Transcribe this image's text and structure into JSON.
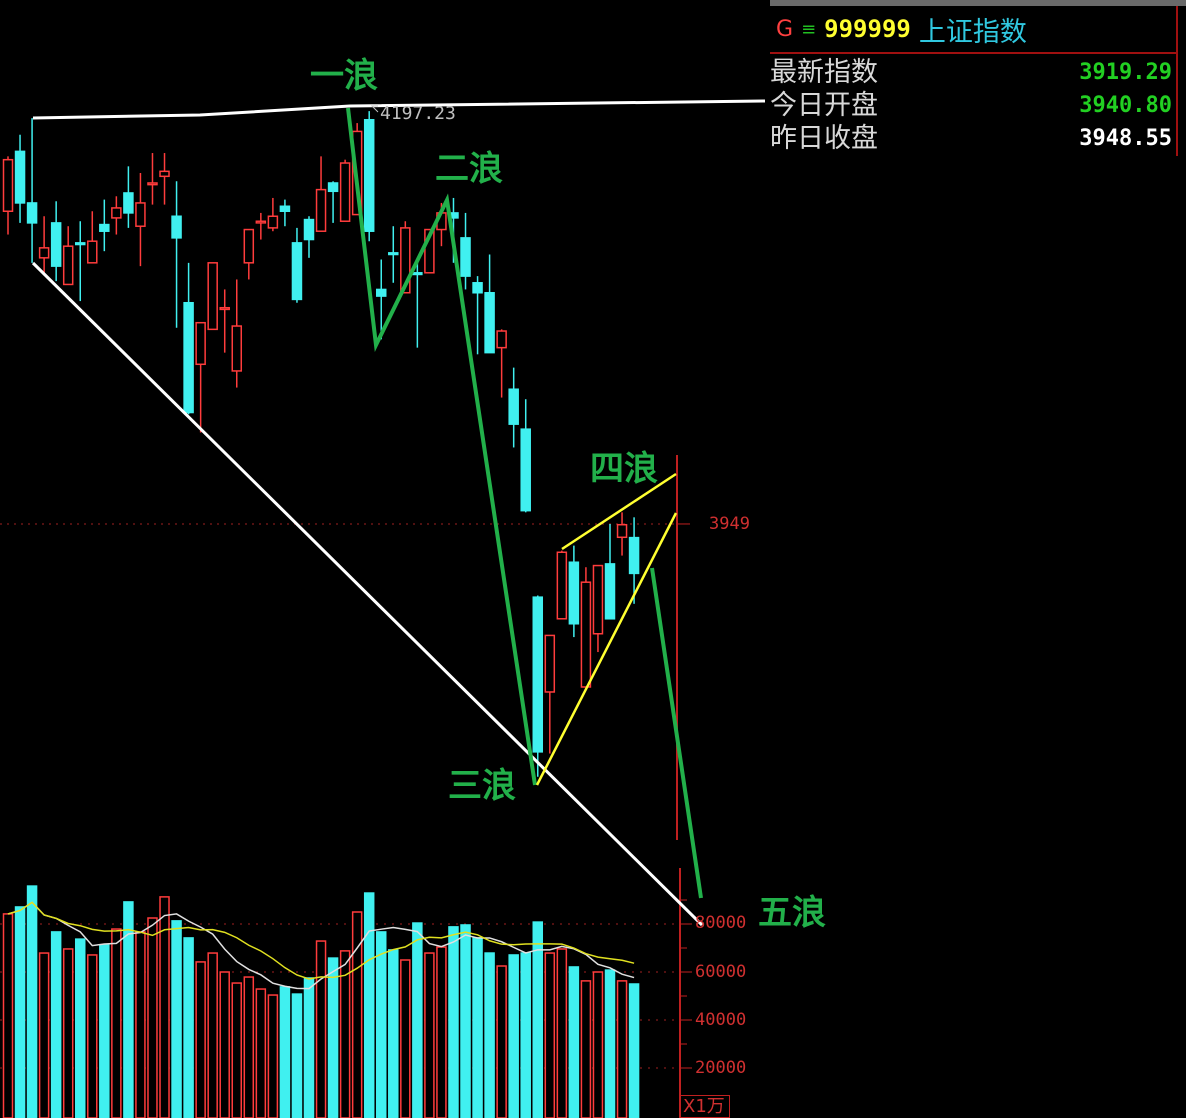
{
  "header": {
    "g_label": "G",
    "menu_icon": "menu-lines-icon",
    "code": "999999",
    "name": "上证指数"
  },
  "quote": [
    {
      "label": "最新指数",
      "value": "3919.29",
      "color": "#22d022"
    },
    {
      "label": "今日开盘",
      "value": "3940.80",
      "color": "#22d022"
    },
    {
      "label": "昨日收盘",
      "value": "3948.55",
      "color": "#ffffff"
    }
  ],
  "annotations": {
    "wave1": "一浪",
    "wave2": "二浪",
    "wave3": "三浪",
    "wave4": "四浪",
    "wave5": "五浪"
  },
  "colors": {
    "up": "#ff3c3c",
    "down": "#40f0f0",
    "trendline": "#ffffff",
    "wave": "#22b04a",
    "wedge": "#ffff30",
    "axis": "#c02020",
    "ma5": "#e0e0e0",
    "ma10": "#e0e020"
  },
  "chart_data": [
    {
      "type": "candlestick",
      "price_label": "3949",
      "high_label": "4197.23",
      "ylim": [
        3753,
        4264
      ],
      "reference_price": 3949,
      "ohlc": [
        [
          4137,
          4170,
          4123,
          4168
        ],
        [
          4173,
          4183,
          4130,
          4142
        ],
        [
          4142,
          4193,
          4106,
          4130
        ],
        [
          4109,
          4134,
          4100,
          4115
        ],
        [
          4130,
          4143,
          4095,
          4104
        ],
        [
          4093,
          4128,
          4093,
          4116
        ],
        [
          4118,
          4131,
          4083,
          4117
        ],
        [
          4106,
          4137,
          4106,
          4119
        ],
        [
          4129,
          4144,
          4113,
          4125
        ],
        [
          4133,
          4146,
          4123,
          4139
        ],
        [
          4148,
          4164,
          4127,
          4136
        ],
        [
          4128,
          4160,
          4104,
          4142
        ],
        [
          4153,
          4172,
          4141,
          4154
        ],
        [
          4158,
          4172,
          4141,
          4161
        ],
        [
          4134,
          4155,
          4067,
          4121
        ],
        [
          4082,
          4106,
          4015,
          4016
        ],
        [
          4045,
          4070,
          4004,
          4070
        ],
        [
          4066,
          4106,
          4066,
          4106
        ],
        [
          4078,
          4090,
          4052,
          4079
        ],
        [
          4041,
          4096,
          4031,
          4068
        ],
        [
          4106,
          4126,
          4096,
          4126
        ],
        [
          4130,
          4136,
          4120,
          4131
        ],
        [
          4127,
          4145,
          4125,
          4134
        ],
        [
          4140,
          4144,
          4128,
          4137
        ],
        [
          4118,
          4127,
          4082,
          4084
        ],
        [
          4132,
          4134,
          4109,
          4120
        ],
        [
          4125,
          4170,
          4125,
          4150
        ],
        [
          4154,
          4155,
          4130,
          4149
        ],
        [
          4131,
          4168,
          4131,
          4166
        ],
        [
          4135,
          4190,
          4135,
          4185
        ],
        [
          4192,
          4197.23,
          4119,
          4125
        ],
        [
          4090,
          4108,
          4060,
          4086
        ],
        [
          4112,
          4128,
          4094,
          4111
        ],
        [
          4088,
          4131,
          4088,
          4127
        ],
        [
          4100,
          4106,
          4055,
          4099
        ],
        [
          4100,
          4126,
          4100,
          4126
        ],
        [
          4126,
          4142,
          4116,
          4136
        ],
        [
          4136,
          4145,
          4106,
          4133
        ],
        [
          4121,
          4136,
          4090,
          4098
        ],
        [
          4094,
          4098,
          4051,
          4088
        ],
        [
          4088,
          4111,
          4052,
          4052
        ],
        [
          4055,
          4066,
          4025,
          4065
        ],
        [
          4030,
          4043,
          3995,
          4009
        ],
        [
          4006,
          4024,
          3956,
          3957
        ],
        [
          3905,
          3906,
          3797,
          3812
        ],
        [
          3848,
          3882,
          3811,
          3882
        ],
        [
          3892,
          3933,
          3892,
          3932
        ],
        [
          3926,
          3936,
          3881,
          3889
        ],
        [
          3851,
          3923,
          3851,
          3914
        ],
        [
          3883,
          3924,
          3872,
          3924
        ],
        [
          3925,
          3949,
          3892,
          3892
        ],
        [
          3941,
          3956,
          3930,
          3948.55
        ],
        [
          3940.8,
          3953,
          3901,
          3919.29
        ]
      ]
    },
    {
      "type": "bar",
      "unit_label": "X1万",
      "ylim": [
        0,
        102500
      ],
      "ticks": [
        "20000",
        "40000",
        "60000",
        "80000"
      ],
      "tick_values": [
        20000,
        40000,
        60000,
        80000
      ],
      "moving_averages": [
        5,
        10
      ],
      "volume": [
        84200,
        87100,
        95800,
        67900,
        76700,
        69600,
        73700,
        67100,
        71300,
        77900,
        89200,
        76700,
        82500,
        91300,
        81300,
        74200,
        64200,
        67900,
        60000,
        55400,
        57900,
        52900,
        50400,
        53800,
        50800,
        57500,
        72900,
        65800,
        68800,
        85000,
        92900,
        76700,
        69200,
        65000,
        80400,
        67900,
        70400,
        78800,
        79600,
        74200,
        67900,
        62500,
        67100,
        67900,
        80800,
        67900,
        69600,
        62100,
        56300,
        60000,
        60800,
        56300,
        55000
      ]
    }
  ]
}
